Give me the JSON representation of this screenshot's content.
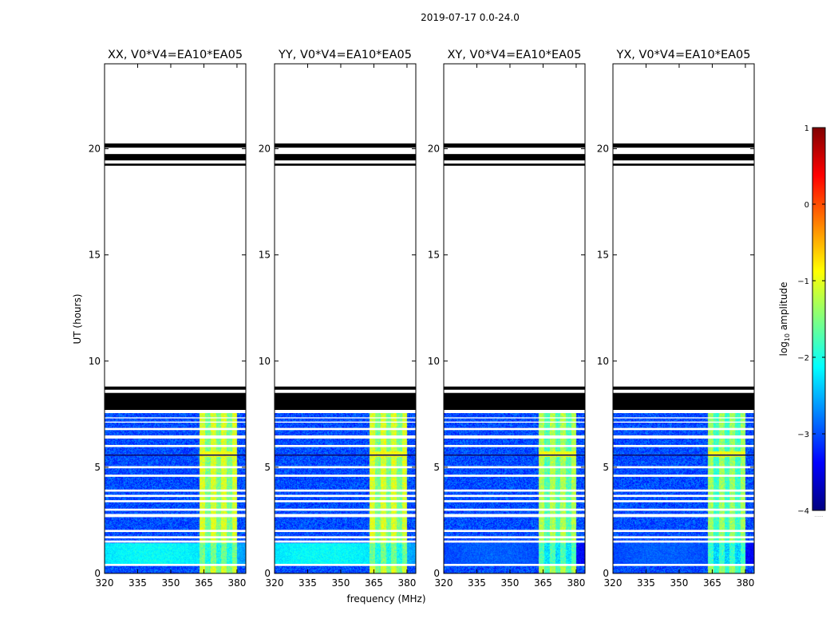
{
  "figure_title": "2019-07-17 0.0-24.0",
  "xlabel": "frequency (MHz)",
  "ylabel": "UT (hours)",
  "colorbar_label": "log10 amplitude",
  "colorbar_label_base": "log",
  "colorbar_label_sub": "10",
  "colorbar_label_rest": " amplitude",
  "colorbar_footer": "......",
  "colors": {
    "jet": [
      "#000080",
      "#0000ff",
      "#0080ff",
      "#00ffff",
      "#80ff80",
      "#ffff00",
      "#ff8000",
      "#ff0000",
      "#800000"
    ],
    "flag_band": "#000000",
    "gap": "#ffffff"
  },
  "chart_data": {
    "type": "heatmap",
    "panels": [
      {
        "title": "XX, V0*V4=EA10*EA05",
        "pol": "XX",
        "low_band_level": -2.1,
        "rfi_level": -1.3
      },
      {
        "title": "YY, V0*V4=EA10*EA05",
        "pol": "YY",
        "low_band_level": -2.1,
        "rfi_level": -1.3
      },
      {
        "title": "XY, V0*V4=EA10*EA05",
        "pol": "XY",
        "low_band_level": -2.9,
        "rfi_level": -1.5
      },
      {
        "title": "YX, V0*V4=EA10*EA05",
        "pol": "YX",
        "low_band_level": -2.9,
        "rfi_level": -1.6
      }
    ],
    "x_ticks": [
      "320",
      "335",
      "350",
      "365",
      "380"
    ],
    "x_tick_values": [
      320,
      335,
      350,
      365,
      380
    ],
    "xlim": [
      320,
      384
    ],
    "y_ticks": [
      "0",
      "5",
      "10",
      "15",
      "20"
    ],
    "y_tick_values": [
      0,
      5,
      10,
      15,
      20
    ],
    "ylim": [
      0,
      24
    ],
    "colorbar": {
      "ticks": [
        "1",
        "0",
        "−1",
        "−2",
        "−3",
        "−4"
      ],
      "tick_values": [
        1,
        0,
        -1,
        -2,
        -3,
        -4
      ],
      "range": [
        -4,
        1
      ]
    },
    "data_coverage_hours": [
      0.0,
      7.55
    ],
    "background_level": -3.0,
    "flag_bands_hours": [
      [
        7.7,
        8.5
      ],
      [
        8.65,
        8.8
      ],
      [
        19.2,
        19.3
      ],
      [
        19.45,
        19.75
      ],
      [
        20.05,
        20.25
      ]
    ],
    "gaps_hours": [
      [
        0.35,
        0.45
      ],
      [
        1.45,
        1.55
      ],
      [
        1.65,
        1.75
      ],
      [
        1.95,
        2.05
      ],
      [
        2.65,
        2.8
      ],
      [
        2.95,
        3.05
      ],
      [
        3.35,
        3.45
      ],
      [
        3.6,
        3.7
      ],
      [
        3.85,
        3.95
      ],
      [
        4.55,
        4.65
      ],
      [
        4.95,
        5.05
      ],
      [
        5.55,
        5.6
      ],
      [
        5.95,
        6.05
      ],
      [
        6.35,
        6.5
      ],
      [
        6.75,
        6.85
      ],
      [
        7.1,
        7.15
      ],
      [
        7.3,
        7.35
      ]
    ],
    "rfi_band_MHz": [
      363,
      380
    ],
    "strong_time_hours": [
      5.5,
      5.75
    ],
    "low_band_hours": [
      0.45,
      1.45
    ]
  }
}
